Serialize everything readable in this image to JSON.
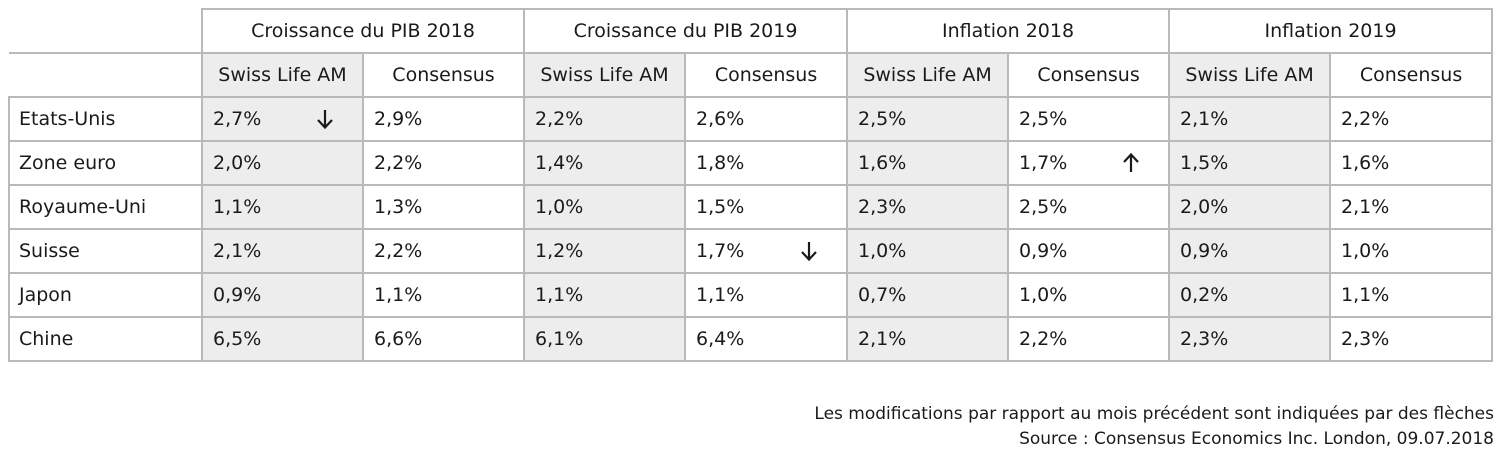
{
  "groups": [
    "Croissance du PIB 2018",
    "Croissance du PIB 2019",
    "Inflation 2018",
    "Inflation 2019"
  ],
  "subheaders": [
    "Swiss Life AM",
    "Consensus"
  ],
  "rows": [
    {
      "country": "Etats-Unis",
      "values": [
        "2,7%",
        "2,9%",
        "2,2%",
        "2,6%",
        "2,5%",
        "2,5%",
        "2,1%",
        "2,2%"
      ],
      "arrows": [
        "down",
        null,
        null,
        null,
        null,
        null,
        null,
        null
      ]
    },
    {
      "country": "Zone euro",
      "values": [
        "2,0%",
        "2,2%",
        "1,4%",
        "1,8%",
        "1,6%",
        "1,7%",
        "1,5%",
        "1,6%"
      ],
      "arrows": [
        null,
        null,
        null,
        null,
        null,
        "up",
        null,
        null
      ]
    },
    {
      "country": "Royaume-Uni",
      "values": [
        "1,1%",
        "1,3%",
        "1,0%",
        "1,5%",
        "2,3%",
        "2,5%",
        "2,0%",
        "2,1%"
      ],
      "arrows": [
        null,
        null,
        null,
        null,
        null,
        null,
        null,
        null
      ]
    },
    {
      "country": "Suisse",
      "values": [
        "2,1%",
        "2,2%",
        "1,2%",
        "1,7%",
        "1,0%",
        "0,9%",
        "0,9%",
        "1,0%"
      ],
      "arrows": [
        null,
        null,
        null,
        "down",
        null,
        null,
        null,
        null
      ]
    },
    {
      "country": "Japon",
      "values": [
        "0,9%",
        "1,1%",
        "1,1%",
        "1,1%",
        "0,7%",
        "1,0%",
        "0,2%",
        "1,1%"
      ],
      "arrows": [
        null,
        null,
        null,
        null,
        null,
        null,
        null,
        null
      ]
    },
    {
      "country": "Chine",
      "values": [
        "6,5%",
        "6,6%",
        "6,1%",
        "6,4%",
        "2,1%",
        "2,2%",
        "2,3%",
        "2,3%"
      ],
      "arrows": [
        null,
        null,
        null,
        null,
        null,
        null,
        null,
        null
      ]
    }
  ],
  "footnotes": {
    "changes": "Les modifications par rapport au mois précédent sont indiquées par des flèches",
    "source": "Source : Consensus Economics Inc. London, 09.07.2018"
  },
  "colors": {
    "shaded_cell": "#ededed",
    "grid": "#b9b9b9",
    "text": "#1a1a1a"
  }
}
